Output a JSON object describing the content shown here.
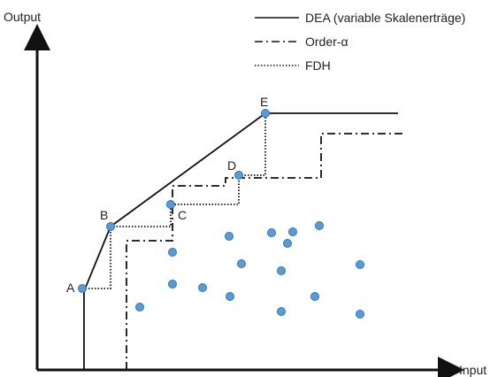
{
  "axes": {
    "y_label": "Output",
    "x_label": "Input"
  },
  "legend": [
    {
      "label": "DEA (variable Skalenerträge)",
      "style": "solid"
    },
    {
      "label": "Order-α",
      "style": "dashdot"
    },
    {
      "label": "FDH",
      "style": "dotted"
    }
  ],
  "point_labels": [
    "A",
    "B",
    "C",
    "D",
    "E"
  ],
  "colors": {
    "point_fill": "#5b9bd5",
    "point_stroke": "#2e75b6",
    "line": "#111111"
  }
}
